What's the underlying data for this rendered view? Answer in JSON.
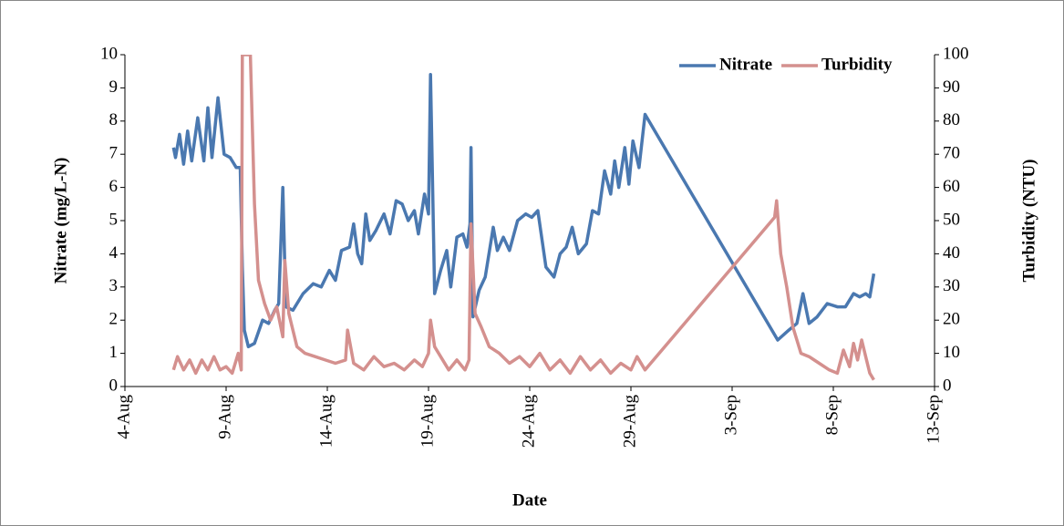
{
  "chart_data": {
    "type": "line",
    "x_label": "Date",
    "y_label": "Nitrate (mg/L-N)",
    "y2_label": "Turbidity (NTU)",
    "legend": "top-right",
    "xlim": [
      4,
      44
    ],
    "xticks": [
      {
        "value": 4,
        "label": "4-Aug"
      },
      {
        "value": 9,
        "label": "9-Aug"
      },
      {
        "value": 14,
        "label": "14-Aug"
      },
      {
        "value": 19,
        "label": "19-Aug"
      },
      {
        "value": 24,
        "label": "24-Aug"
      },
      {
        "value": 29,
        "label": "29-Aug"
      },
      {
        "value": 34,
        "label": "3-Sep"
      },
      {
        "value": 39,
        "label": "8-Sep"
      },
      {
        "value": 44,
        "label": "13-Sep"
      }
    ],
    "ylim": [
      0,
      10
    ],
    "yticks": [
      0,
      1,
      2,
      3,
      4,
      5,
      6,
      7,
      8,
      9,
      10
    ],
    "y2lim": [
      0,
      100
    ],
    "y2ticks": [
      0,
      10,
      20,
      30,
      40,
      50,
      60,
      70,
      80,
      90,
      100
    ],
    "series": [
      {
        "name": "Nitrate",
        "color": "#4a78b0",
        "axis": "y",
        "x": [
          6.4,
          6.5,
          6.7,
          6.9,
          7.1,
          7.3,
          7.6,
          7.9,
          8.1,
          8.3,
          8.6,
          8.9,
          9.2,
          9.5,
          9.7,
          9.8,
          9.9,
          10.1,
          10.4,
          10.8,
          11.1,
          11.4,
          11.6,
          11.8,
          11.95,
          12.3,
          12.8,
          13.3,
          13.7,
          14.1,
          14.4,
          14.7,
          15.1,
          15.3,
          15.5,
          15.7,
          15.9,
          16.1,
          16.4,
          16.8,
          17.1,
          17.4,
          17.7,
          18.0,
          18.3,
          18.5,
          18.8,
          19.0,
          19.1,
          19.3,
          19.6,
          19.9,
          20.1,
          20.4,
          20.7,
          20.9,
          21.05,
          21.1,
          21.2,
          21.5,
          21.8,
          22.2,
          22.4,
          22.7,
          23.0,
          23.4,
          23.8,
          24.1,
          24.4,
          24.8,
          25.2,
          25.5,
          25.8,
          26.1,
          26.4,
          26.8,
          27.1,
          27.4,
          27.7,
          28.0,
          28.2,
          28.4,
          28.7,
          28.9,
          29.1,
          29.4,
          29.7,
          36.25,
          36.8,
          37.2,
          37.5,
          37.8,
          38.2,
          38.7,
          39.2,
          39.6,
          40.0,
          40.3,
          40.6,
          40.8,
          41.0
        ],
        "values": [
          7.2,
          6.9,
          7.6,
          6.7,
          7.7,
          6.8,
          8.1,
          6.8,
          8.4,
          6.9,
          8.7,
          7.0,
          6.9,
          6.6,
          6.6,
          3.6,
          1.7,
          1.2,
          1.3,
          2.0,
          1.9,
          2.3,
          2.5,
          6.0,
          2.4,
          2.3,
          2.8,
          3.1,
          3.0,
          3.5,
          3.2,
          4.1,
          4.2,
          4.9,
          4.0,
          3.7,
          5.2,
          4.4,
          4.7,
          5.2,
          4.6,
          5.6,
          5.5,
          5.0,
          5.3,
          4.6,
          5.8,
          5.2,
          9.4,
          2.8,
          3.5,
          4.1,
          3.0,
          4.5,
          4.6,
          4.2,
          4.9,
          7.2,
          2.1,
          2.9,
          3.3,
          4.8,
          4.1,
          4.5,
          4.1,
          5.0,
          5.2,
          5.1,
          5.3,
          3.6,
          3.3,
          4.0,
          4.2,
          4.8,
          4.0,
          4.3,
          5.3,
          5.2,
          6.5,
          5.8,
          6.8,
          6.0,
          7.2,
          6.1,
          7.4,
          6.6,
          8.2,
          1.4,
          1.7,
          1.9,
          2.8,
          1.9,
          2.1,
          2.5,
          2.4,
          2.4,
          2.8,
          2.7,
          2.8,
          2.7,
          3.4
        ]
      },
      {
        "name": "Turbidity",
        "color": "#d4908e",
        "axis": "y2",
        "x": [
          6.4,
          6.6,
          6.9,
          7.2,
          7.5,
          7.8,
          8.1,
          8.4,
          8.7,
          9.0,
          9.3,
          9.6,
          9.75,
          9.8,
          9.9,
          10.2,
          10.4,
          10.6,
          10.9,
          11.2,
          11.5,
          11.8,
          11.9,
          12.1,
          12.5,
          12.9,
          13.4,
          13.9,
          14.4,
          14.9,
          15.0,
          15.3,
          15.8,
          16.3,
          16.8,
          17.3,
          17.8,
          18.3,
          18.7,
          19.0,
          19.1,
          19.3,
          19.6,
          20.0,
          20.4,
          20.8,
          21.0,
          21.1,
          21.3,
          21.6,
          22.0,
          22.5,
          23.0,
          23.5,
          24.0,
          24.5,
          25.0,
          25.5,
          26.0,
          26.5,
          27.0,
          27.5,
          28.0,
          28.5,
          29.0,
          29.3,
          29.7,
          36.1,
          36.2,
          36.4,
          36.7,
          37.0,
          37.4,
          37.8,
          38.3,
          38.8,
          39.2,
          39.5,
          39.8,
          40.0,
          40.2,
          40.4,
          40.6,
          40.8,
          41.0
        ],
        "values": [
          5,
          9,
          5,
          8,
          4,
          8,
          5,
          9,
          5,
          6,
          4,
          10,
          5,
          100,
          100,
          100,
          55,
          32,
          25,
          20,
          24,
          15,
          38,
          22,
          12,
          10,
          9,
          8,
          7,
          8,
          17,
          7,
          5,
          9,
          6,
          7,
          5,
          8,
          6,
          10,
          20,
          12,
          9,
          5,
          8,
          5,
          8,
          49,
          22,
          18,
          12,
          10,
          7,
          9,
          6,
          10,
          5,
          8,
          4,
          9,
          5,
          8,
          4,
          7,
          5,
          9,
          5,
          51,
          56,
          40,
          30,
          18,
          10,
          9,
          7,
          5,
          4,
          11,
          6,
          13,
          8,
          14,
          9,
          4,
          2
        ]
      }
    ]
  }
}
